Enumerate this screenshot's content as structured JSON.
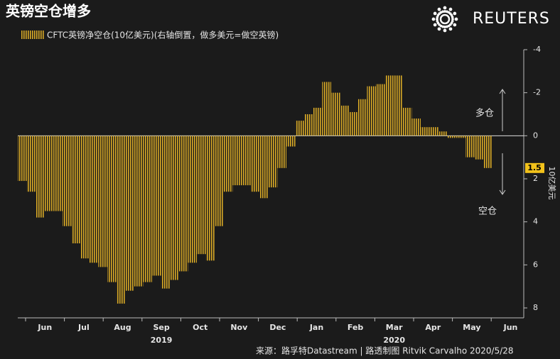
{
  "chart_data": {
    "type": "bar",
    "title": "英镑空仓增多",
    "brand": "REUTERS",
    "legend_label": "CFTC英镑净空仓(10亿美元)(右轴倒置，做多美元=做空英镑)",
    "y_axis_label": "10亿美元",
    "annotations": {
      "long": "多仓",
      "short": "空仓"
    },
    "source": "来源：路孚特Datastream | 路透制图 Ritvik Carvalho 2020/5/28",
    "months": [
      "Jun",
      "Jul",
      "Aug",
      "Sep",
      "Oct",
      "Nov",
      "Dec",
      "Jan",
      "Feb",
      "Mar",
      "Apr",
      "May",
      "Jun"
    ],
    "years": [
      "2019",
      "2020"
    ],
    "categories": [
      null,
      null,
      null,
      null,
      null,
      null,
      null,
      null,
      null,
      null,
      null,
      null,
      null,
      null,
      null,
      null,
      null,
      null,
      null,
      null,
      null,
      null,
      null,
      null,
      null,
      null,
      null,
      null,
      null,
      null,
      null,
      null,
      null,
      null,
      null,
      null,
      null,
      null,
      null,
      null,
      null,
      null,
      null,
      null,
      null,
      null,
      null,
      null,
      null,
      null,
      null,
      null,
      null
    ],
    "values": [
      2.1,
      2.6,
      3.8,
      3.5,
      3.5,
      4.2,
      5.0,
      5.7,
      5.9,
      6.1,
      6.8,
      7.8,
      7.2,
      7.0,
      6.8,
      6.5,
      7.1,
      6.7,
      6.3,
      5.9,
      5.5,
      5.8,
      4.2,
      2.6,
      2.3,
      2.3,
      2.6,
      2.9,
      2.4,
      1.5,
      0.5,
      -0.7,
      -1.0,
      -1.3,
      -2.5,
      -2.0,
      -1.4,
      -1.1,
      -1.7,
      -2.3,
      -2.4,
      -2.8,
      -2.8,
      -1.3,
      -0.8,
      -0.4,
      -0.4,
      -0.2,
      0.1,
      0.1,
      1.0,
      1.1,
      1.5
    ],
    "current_value": 1.5,
    "color": "#d9aa26",
    "ylim": [
      8,
      -4
    ],
    "yticks": [
      -4,
      -2,
      0,
      2,
      4,
      6,
      8
    ],
    "inverted": true
  }
}
